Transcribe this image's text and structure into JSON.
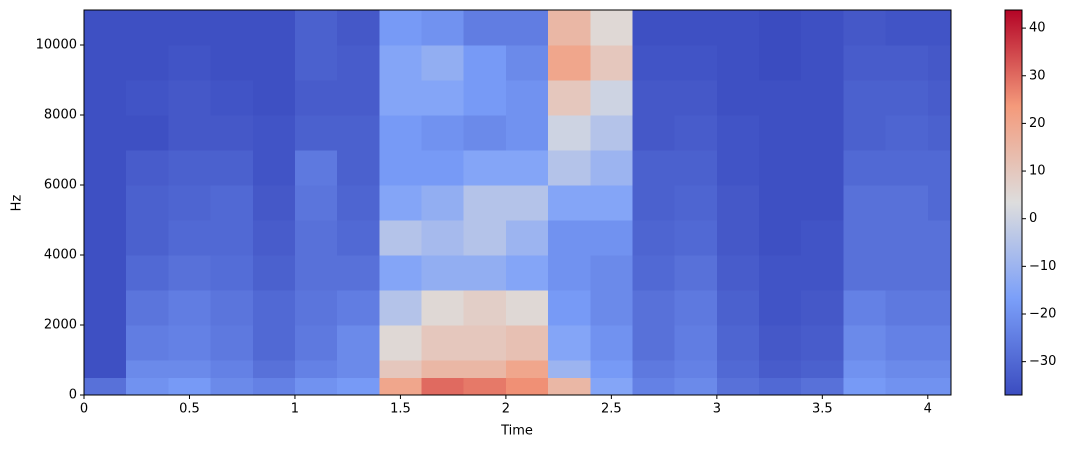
{
  "chart_data": {
    "type": "heatmap",
    "x_label": "Time",
    "y_label": "Hz",
    "x": [
      0,
      0.2,
      0.4,
      0.6,
      0.8,
      1.0,
      1.2,
      1.4,
      1.6,
      1.8,
      2.0,
      2.2,
      2.4,
      2.6,
      2.8,
      3.0,
      3.2,
      3.4,
      3.6,
      3.8,
      4.0
    ],
    "y": [
      0,
      500,
      1000,
      2000,
      3000,
      4000,
      5000,
      6000,
      7000,
      8000,
      9000,
      10000
    ],
    "values": [
      [
        -28,
        -20,
        -18,
        -22,
        -24,
        -20,
        -18,
        20,
        30,
        28,
        25,
        15,
        -15,
        -24,
        -22,
        -28,
        -30,
        -28,
        -18,
        -20,
        -20
      ],
      [
        -36,
        -22,
        -22,
        -24,
        -28,
        -24,
        -22,
        10,
        15,
        15,
        20,
        -10,
        -18,
        -26,
        -24,
        -30,
        -33,
        -32,
        -20,
        -22,
        -22
      ],
      [
        -36,
        -25,
        -24,
        -26,
        -30,
        -26,
        -22,
        5,
        10,
        10,
        12,
        -15,
        -20,
        -28,
        -25,
        -31,
        -34,
        -33,
        -22,
        -24,
        -24
      ],
      [
        -36,
        -27,
        -25,
        -27,
        -30,
        -27,
        -25,
        -5,
        5,
        8,
        5,
        -18,
        -22,
        -28,
        -26,
        -32,
        -35,
        -34,
        -24,
        -26,
        -26
      ],
      [
        -36,
        -30,
        -28,
        -29,
        -32,
        -28,
        -28,
        -15,
        -12,
        -12,
        -15,
        -20,
        -22,
        -30,
        -28,
        -33,
        -35,
        -35,
        -28,
        -28,
        -28
      ],
      [
        -36,
        -32,
        -30,
        -30,
        -33,
        -28,
        -30,
        -5,
        -8,
        -5,
        -10,
        -20,
        -20,
        -31,
        -30,
        -34,
        -36,
        -35,
        -28,
        -28,
        -28
      ],
      [
        -36,
        -32,
        -31,
        -30,
        -34,
        -27,
        -31,
        -15,
        -12,
        -5,
        -5,
        -15,
        -15,
        -32,
        -31,
        -34,
        -36,
        -36,
        -28,
        -28,
        -30
      ],
      [
        -36,
        -33,
        -32,
        -32,
        -35,
        -26,
        -32,
        -18,
        -18,
        -15,
        -15,
        -5,
        -10,
        -32,
        -32,
        -35,
        -36,
        -36,
        -30,
        -30,
        -30
      ],
      [
        -36,
        -36,
        -34,
        -34,
        -35,
        -32,
        -32,
        -18,
        -20,
        -22,
        -20,
        0,
        -5,
        -34,
        -33,
        -35,
        -36,
        -36,
        -32,
        -31,
        -32
      ],
      [
        -36,
        -35,
        -34,
        -35,
        -36,
        -33,
        -33,
        -15,
        -15,
        -18,
        -20,
        10,
        0,
        -34,
        -34,
        -36,
        -36,
        -36,
        -32,
        -32,
        -33
      ],
      [
        -36,
        -36,
        -35,
        -36,
        -36,
        -32,
        -33,
        -15,
        -12,
        -18,
        -22,
        20,
        10,
        -35,
        -35,
        -36,
        -37,
        -36,
        -33,
        -33,
        -34
      ],
      [
        -36,
        -36,
        -36,
        -36,
        -36,
        -32,
        -34,
        -18,
        -20,
        -25,
        -25,
        15,
        5,
        -36,
        -36,
        -36,
        -37,
        -36,
        -34,
        -35,
        -35
      ]
    ],
    "xlim": [
      0,
      4.11
    ],
    "ylim": [
      0,
      11000
    ],
    "xticks": [
      0,
      0.5,
      1,
      1.5,
      2,
      2.5,
      3,
      3.5,
      4
    ],
    "yticks": [
      0,
      2000,
      4000,
      6000,
      8000,
      10000
    ],
    "clim": [
      -37,
      43.8
    ],
    "cticks": [
      {
        "value": -30,
        "label": "−30"
      },
      {
        "value": -20,
        "label": "−20"
      },
      {
        "value": -10,
        "label": "−10"
      },
      0,
      10,
      20,
      30,
      40
    ],
    "colormap": [
      "#3b4cc0",
      "#7b9ff9",
      "#dddddd",
      "#f49a7b",
      "#b40426"
    ]
  }
}
